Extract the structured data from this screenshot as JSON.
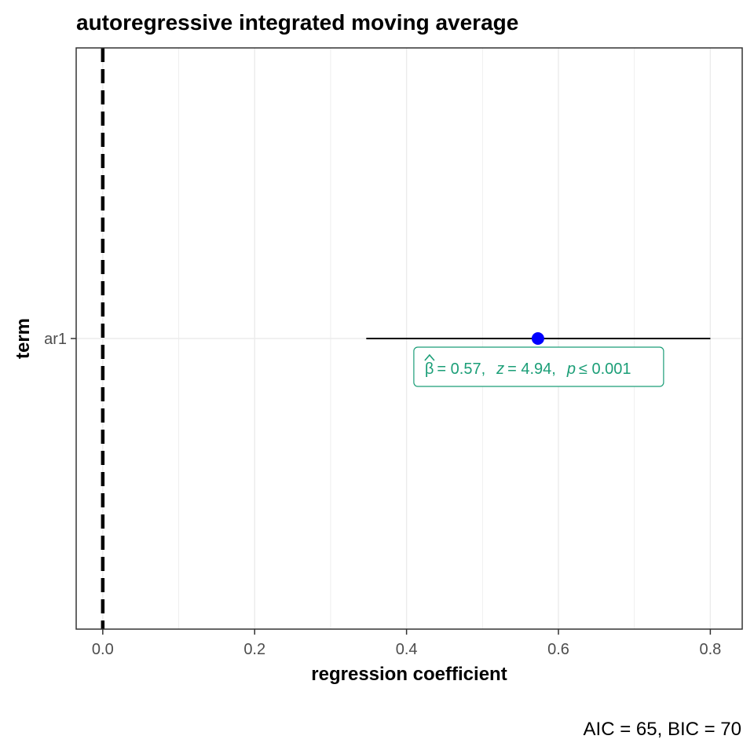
{
  "chart_data": {
    "type": "scatter",
    "title": "autoregressive integrated moving average",
    "xlabel": "regression coefficient",
    "ylabel": "term",
    "caption": "AIC = 65, BIC = 70",
    "xlim": [
      -0.035,
      0.842
    ],
    "x_ticks": [
      0.0,
      0.2,
      0.4,
      0.6,
      0.8
    ],
    "x_tick_labels": [
      "0.0",
      "0.2",
      "0.4",
      "0.6",
      "0.8"
    ],
    "categories": [
      "ar1"
    ],
    "reference_line": {
      "x": 0,
      "style": "dashed"
    },
    "points": [
      {
        "term": "ar1",
        "estimate": 0.573,
        "conf_low": 0.347,
        "conf_high": 0.8,
        "label": {
          "beta_symbol": "β",
          "beta": "= 0.57,",
          "z_symbol": "z",
          "z": "= 4.94,",
          "p_symbol": "p",
          "p": "≤ 0.001"
        }
      }
    ],
    "grid": true,
    "colors": {
      "point": "#0000ff",
      "label": "#1b9e77",
      "errorbar": "#000000",
      "grid": "#ebebeb"
    }
  }
}
